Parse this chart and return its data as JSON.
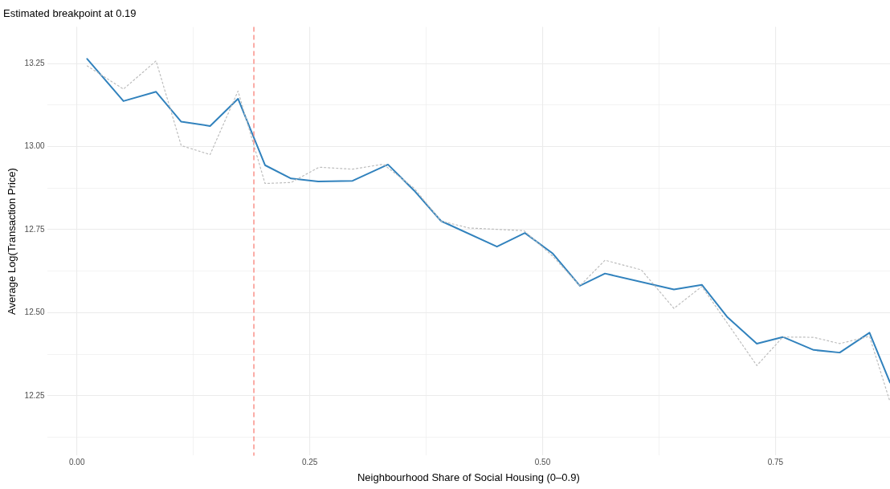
{
  "chart_data": {
    "type": "line",
    "title": "Estimated breakpoint at 0.19",
    "xlabel": "Neighbourhood Share of Social Housing (0–0.9)",
    "ylabel": "Average Log(Transaction Price)",
    "xlim": [
      -0.032,
      0.873
    ],
    "ylim": [
      12.07,
      13.36
    ],
    "xticks": [
      {
        "value": 0,
        "label": "0.00"
      },
      {
        "value": 0.125,
        "label": null
      },
      {
        "value": 0.25,
        "label": "0.25"
      },
      {
        "value": 0.375,
        "label": null
      },
      {
        "value": 0.5,
        "label": "0.50"
      },
      {
        "value": 0.625,
        "label": null
      },
      {
        "value": 0.75,
        "label": "0.75"
      }
    ],
    "yticks": [
      {
        "value": 12.125,
        "label": null
      },
      {
        "value": 12.25,
        "label": "12.25"
      },
      {
        "value": 12.375,
        "label": null
      },
      {
        "value": 12.5,
        "label": "12.50"
      },
      {
        "value": 12.625,
        "label": null
      },
      {
        "value": 12.75,
        "label": "12.75"
      },
      {
        "value": 12.875,
        "label": null
      },
      {
        "value": 13,
        "label": "13.00"
      },
      {
        "value": 13.125,
        "label": null
      },
      {
        "value": 13.25,
        "label": "13.25"
      }
    ],
    "grid": true,
    "legend": false,
    "marker": "none",
    "series": [
      {
        "color": "#bdbdbd",
        "line_style": "dotted",
        "x": [
          0.011,
          0.05,
          0.085,
          0.112,
          0.143,
          0.173,
          0.202,
          0.23,
          0.26,
          0.296,
          0.329,
          0.362,
          0.391,
          0.421,
          0.48,
          0.511,
          0.54,
          0.567,
          0.606,
          0.641,
          0.671,
          0.73,
          0.758,
          0.791,
          0.819,
          0.851,
          0.873
        ],
        "values": [
          13.243,
          13.173,
          13.258,
          13.003,
          12.976,
          13.167,
          12.889,
          12.892,
          12.938,
          12.932,
          12.947,
          12.875,
          12.776,
          12.755,
          12.747,
          12.67,
          12.581,
          12.658,
          12.629,
          12.513,
          12.579,
          12.341,
          12.427,
          12.426,
          12.407,
          12.429,
          12.232
        ]
      },
      {
        "color": "#3182bd",
        "line_style": "solid",
        "x": [
          0.011,
          0.05,
          0.085,
          0.112,
          0.143,
          0.173,
          0.202,
          0.23,
          0.259,
          0.296,
          0.334,
          0.362,
          0.391,
          0.451,
          0.481,
          0.511,
          0.54,
          0.567,
          0.641,
          0.671,
          0.698,
          0.73,
          0.758,
          0.791,
          0.819,
          0.851,
          0.873
        ],
        "values": [
          13.264,
          13.137,
          13.165,
          13.075,
          13.062,
          13.144,
          12.944,
          12.904,
          12.895,
          12.897,
          12.946,
          12.868,
          12.776,
          12.699,
          12.74,
          12.678,
          12.581,
          12.618,
          12.57,
          12.584,
          12.488,
          12.407,
          12.427,
          12.388,
          12.38,
          12.44,
          12.29
        ]
      }
    ],
    "ref_lines": [
      {
        "axis": "x",
        "value": 0.19,
        "color": "#f8766d",
        "line_style": "dashed"
      }
    ]
  }
}
